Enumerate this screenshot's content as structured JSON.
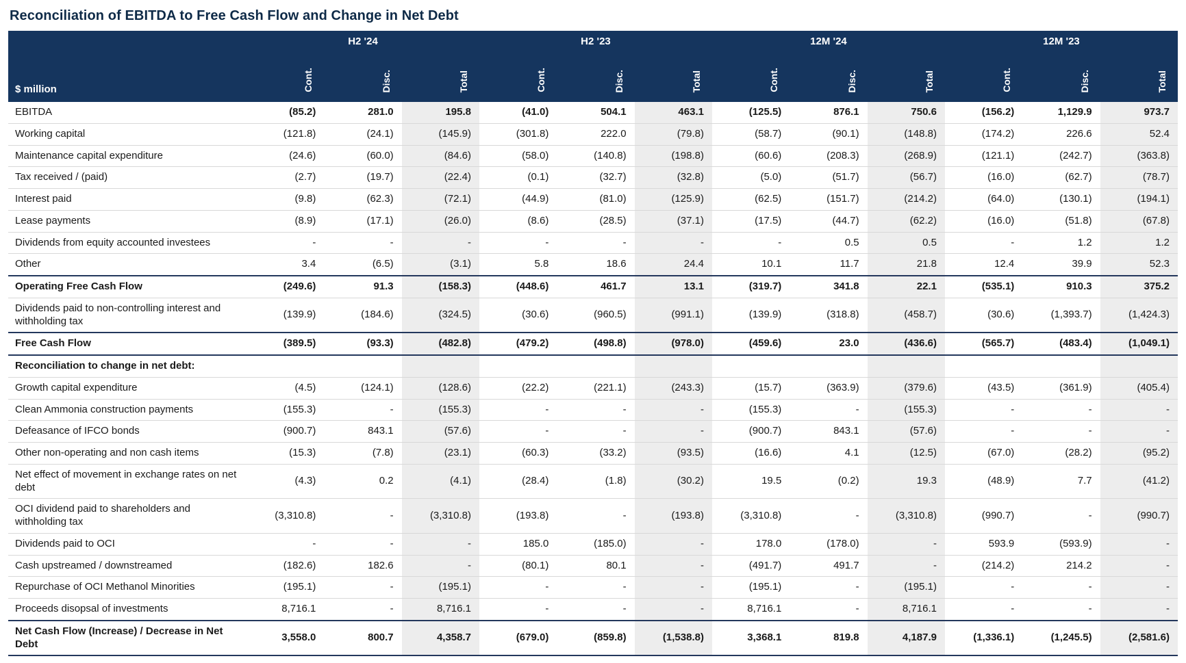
{
  "title": "Reconciliation of EBITDA to Free Cash Flow and Change in Net Debt",
  "colors": {
    "header_bg": "#15355e",
    "header_text": "#ffffff",
    "title_color": "#0e2a47",
    "total_column_bg": "#ededed",
    "row_border": "#d8d8d8",
    "strong_border": "#23375c"
  },
  "table": {
    "unit_label": "$ million",
    "column_groups": [
      "H2 '24",
      "H2 '23",
      "12M '24",
      "12M '23"
    ],
    "sub_columns": [
      "Cont.",
      "Disc.",
      "Total"
    ],
    "rows": [
      {
        "label": "EBITDA",
        "bold_values": true,
        "values": [
          "(85.2)",
          "281.0",
          "195.8",
          "(41.0)",
          "504.1",
          "463.1",
          "(125.5)",
          "876.1",
          "750.6",
          "(156.2)",
          "1,129.9",
          "973.7"
        ]
      },
      {
        "label": "Working capital",
        "values": [
          "(121.8)",
          "(24.1)",
          "(145.9)",
          "(301.8)",
          "222.0",
          "(79.8)",
          "(58.7)",
          "(90.1)",
          "(148.8)",
          "(174.2)",
          "226.6",
          "52.4"
        ]
      },
      {
        "label": "Maintenance capital expenditure",
        "values": [
          "(24.6)",
          "(60.0)",
          "(84.6)",
          "(58.0)",
          "(140.8)",
          "(198.8)",
          "(60.6)",
          "(208.3)",
          "(268.9)",
          "(121.1)",
          "(242.7)",
          "(363.8)"
        ]
      },
      {
        "label": "Tax received / (paid)",
        "values": [
          "(2.7)",
          "(19.7)",
          "(22.4)",
          "(0.1)",
          "(32.7)",
          "(32.8)",
          "(5.0)",
          "(51.7)",
          "(56.7)",
          "(16.0)",
          "(62.7)",
          "(78.7)"
        ]
      },
      {
        "label": "Interest paid",
        "values": [
          "(9.8)",
          "(62.3)",
          "(72.1)",
          "(44.9)",
          "(81.0)",
          "(125.9)",
          "(62.5)",
          "(151.7)",
          "(214.2)",
          "(64.0)",
          "(130.1)",
          "(194.1)"
        ]
      },
      {
        "label": "Lease payments",
        "values": [
          "(8.9)",
          "(17.1)",
          "(26.0)",
          "(8.6)",
          "(28.5)",
          "(37.1)",
          "(17.5)",
          "(44.7)",
          "(62.2)",
          "(16.0)",
          "(51.8)",
          "(67.8)"
        ]
      },
      {
        "label": "Dividends from equity accounted investees",
        "values": [
          "-",
          "-",
          "-",
          "-",
          "-",
          "-",
          "-",
          "0.5",
          "0.5",
          "-",
          "1.2",
          "1.2"
        ]
      },
      {
        "label": "Other",
        "values": [
          "3.4",
          "(6.5)",
          "(3.1)",
          "5.8",
          "18.6",
          "24.4",
          "10.1",
          "11.7",
          "21.8",
          "12.4",
          "39.9",
          "52.3"
        ]
      },
      {
        "label": "Operating Free Cash Flow",
        "bold": true,
        "top_strong": true,
        "values": [
          "(249.6)",
          "91.3",
          "(158.3)",
          "(448.6)",
          "461.7",
          "13.1",
          "(319.7)",
          "341.8",
          "22.1",
          "(535.1)",
          "910.3",
          "375.2"
        ]
      },
      {
        "label": "Dividends paid to non-controlling interest and withholding tax",
        "values": [
          "(139.9)",
          "(184.6)",
          "(324.5)",
          "(30.6)",
          "(960.5)",
          "(991.1)",
          "(139.9)",
          "(318.8)",
          "(458.7)",
          "(30.6)",
          "(1,393.7)",
          "(1,424.3)"
        ]
      },
      {
        "label": "Free Cash Flow",
        "bold": true,
        "top_strong": true,
        "bottom_strong": true,
        "values": [
          "(389.5)",
          "(93.3)",
          "(482.8)",
          "(479.2)",
          "(498.8)",
          "(978.0)",
          "(459.6)",
          "23.0",
          "(436.6)",
          "(565.7)",
          "(483.4)",
          "(1,049.1)"
        ]
      },
      {
        "label": "Reconciliation to change in net debt:",
        "bold": true,
        "values": [
          "",
          "",
          "",
          "",
          "",
          "",
          "",
          "",
          "",
          "",
          "",
          ""
        ]
      },
      {
        "label": "Growth capital expenditure",
        "values": [
          "(4.5)",
          "(124.1)",
          "(128.6)",
          "(22.2)",
          "(221.1)",
          "(243.3)",
          "(15.7)",
          "(363.9)",
          "(379.6)",
          "(43.5)",
          "(361.9)",
          "(405.4)"
        ]
      },
      {
        "label": "Clean Ammonia construction payments",
        "values": [
          "(155.3)",
          "-",
          "(155.3)",
          "-",
          "-",
          "-",
          "(155.3)",
          "-",
          "(155.3)",
          "-",
          "-",
          "-"
        ]
      },
      {
        "label": "Defeasance of IFCO bonds",
        "values": [
          "(900.7)",
          "843.1",
          "(57.6)",
          "-",
          "-",
          "-",
          "(900.7)",
          "843.1",
          "(57.6)",
          "-",
          "-",
          "-"
        ]
      },
      {
        "label": "Other non-operating and non cash items",
        "values": [
          "(15.3)",
          "(7.8)",
          "(23.1)",
          "(60.3)",
          "(33.2)",
          "(93.5)",
          "(16.6)",
          "4.1",
          "(12.5)",
          "(67.0)",
          "(28.2)",
          "(95.2)"
        ]
      },
      {
        "label": "Net effect of movement in exchange rates on net debt",
        "values": [
          "(4.3)",
          "0.2",
          "(4.1)",
          "(28.4)",
          "(1.8)",
          "(30.2)",
          "19.5",
          "(0.2)",
          "19.3",
          "(48.9)",
          "7.7",
          "(41.2)"
        ]
      },
      {
        "label": "OCI dividend paid to shareholders and withholding tax",
        "values": [
          "(3,310.8)",
          "-",
          "(3,310.8)",
          "(193.8)",
          "-",
          "(193.8)",
          "(3,310.8)",
          "-",
          "(3,310.8)",
          "(990.7)",
          "-",
          "(990.7)"
        ]
      },
      {
        "label": "Dividends paid to OCI",
        "values": [
          "-",
          "-",
          "-",
          "185.0",
          "(185.0)",
          "-",
          "178.0",
          "(178.0)",
          "-",
          "593.9",
          "(593.9)",
          "-"
        ]
      },
      {
        "label": "Cash upstreamed / downstreamed",
        "values": [
          "(182.6)",
          "182.6",
          "-",
          "(80.1)",
          "80.1",
          "-",
          "(491.7)",
          "491.7",
          "-",
          "(214.2)",
          "214.2",
          "-"
        ]
      },
      {
        "label": "Repurchase of OCI Methanol Minorities",
        "values": [
          "(195.1)",
          "-",
          "(195.1)",
          "-",
          "-",
          "-",
          "(195.1)",
          "-",
          "(195.1)",
          "-",
          "-",
          "-"
        ]
      },
      {
        "label": "Proceeds disopsal of investments",
        "values": [
          "8,716.1",
          "-",
          "8,716.1",
          "-",
          "-",
          "-",
          "8,716.1",
          "-",
          "8,716.1",
          "-",
          "-",
          "-"
        ]
      },
      {
        "label": "Net Cash Flow (Increase) / Decrease in Net Debt",
        "bold": true,
        "top_strong": true,
        "bottom_strong": true,
        "values": [
          "3,558.0",
          "800.7",
          "4,358.7",
          "(679.0)",
          "(859.8)",
          "(1,538.8)",
          "3,368.1",
          "819.8",
          "4,187.9",
          "(1,336.1)",
          "(1,245.5)",
          "(2,581.6)"
        ]
      }
    ]
  }
}
